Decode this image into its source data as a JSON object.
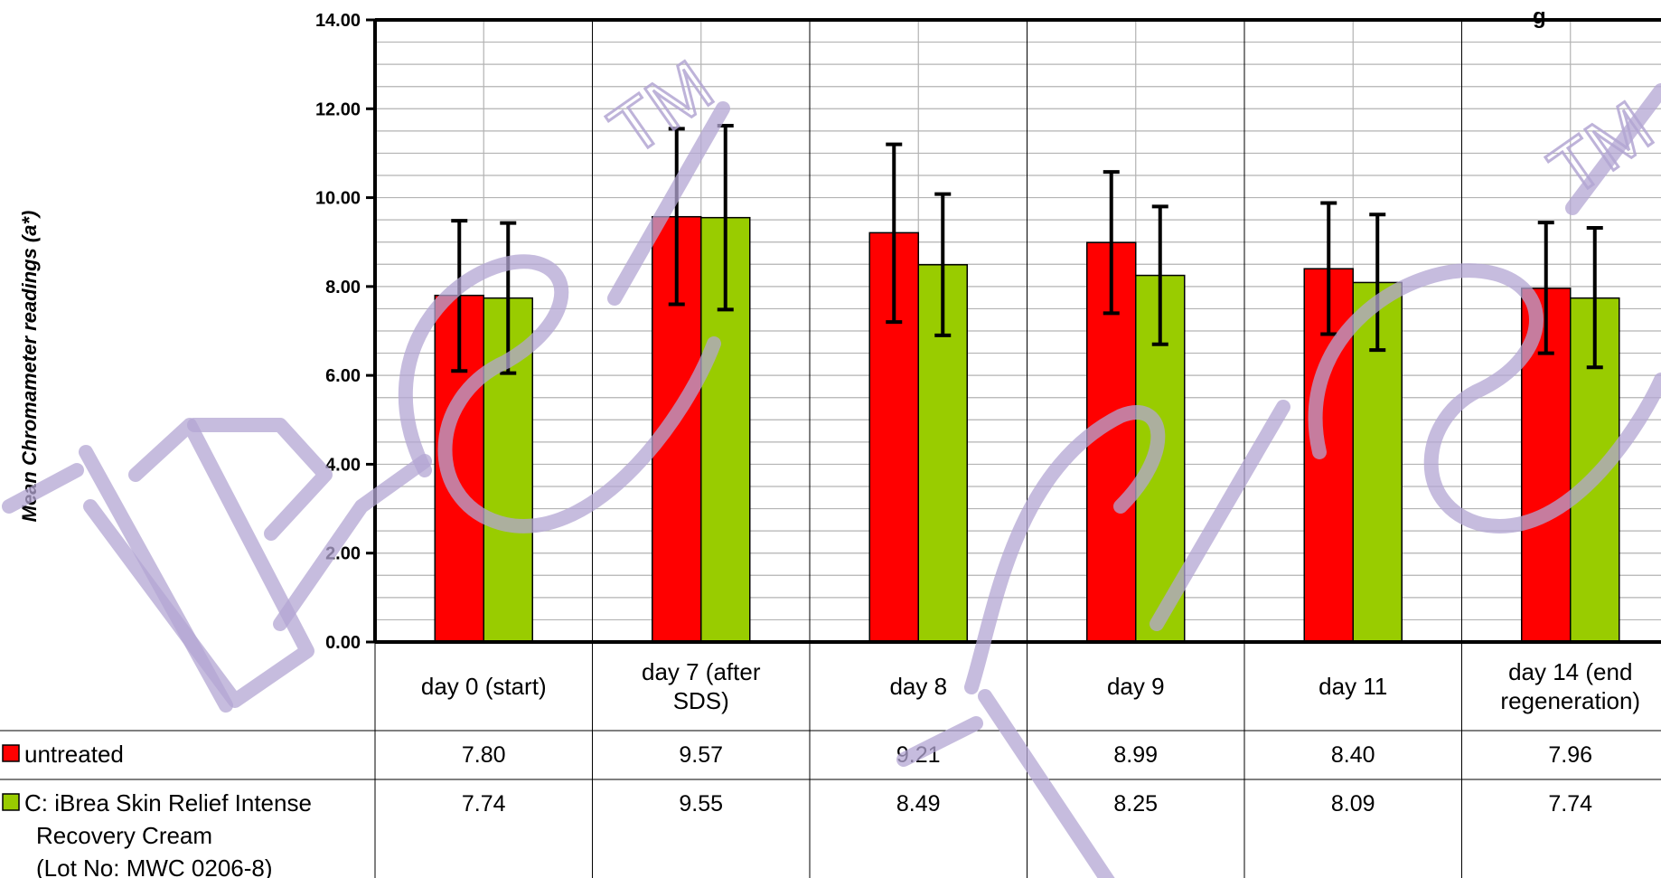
{
  "chart_data": {
    "type": "bar",
    "ylabel": "Mean Chromameter readings (a*)",
    "ylim": [
      0,
      14
    ],
    "yticks": [
      "0.00",
      "2.00",
      "4.00",
      "6.00",
      "8.00",
      "10.00",
      "12.00",
      "14.00"
    ],
    "grid": true,
    "categories": [
      [
        "day 0 (start)"
      ],
      [
        "day 7 (after",
        "SDS)"
      ],
      [
        "day 8"
      ],
      [
        "day 9"
      ],
      [
        "day 11"
      ],
      [
        "day 14 (end",
        "regeneration)"
      ]
    ],
    "series": [
      {
        "name": "untreated",
        "color": "#ff0000",
        "values": [
          7.8,
          9.57,
          9.21,
          8.99,
          8.4,
          7.96
        ],
        "labels": [
          "7.80",
          "9.57",
          "9.21",
          "8.99",
          "8.40",
          "7.96"
        ],
        "err_low": [
          6.1,
          7.6,
          7.2,
          7.4,
          6.93,
          6.5
        ],
        "err_high": [
          9.48,
          11.55,
          11.2,
          10.58,
          9.88,
          9.44
        ]
      },
      {
        "name": "C: iBrea Skin Relief Intense Recovery Cream (Lot No: MWC 0206-8)",
        "legend_lines": [
          "C: iBrea Skin Relief Intense",
          "Recovery Cream",
          "(Lot No: MWC 0206-8)"
        ],
        "color": "#99cc00",
        "values": [
          7.74,
          9.55,
          8.49,
          8.25,
          8.09,
          7.74
        ],
        "labels": [
          "7.74",
          "9.55",
          "8.49",
          "8.25",
          "8.09",
          "7.74"
        ],
        "err_low": [
          6.05,
          7.48,
          6.9,
          6.7,
          6.57,
          6.18
        ],
        "err_high": [
          9.43,
          11.62,
          10.08,
          9.8,
          9.62,
          9.32
        ]
      }
    ],
    "title_fragment": "g"
  },
  "watermark": {
    "text": "iBrea",
    "tm": "TM"
  }
}
